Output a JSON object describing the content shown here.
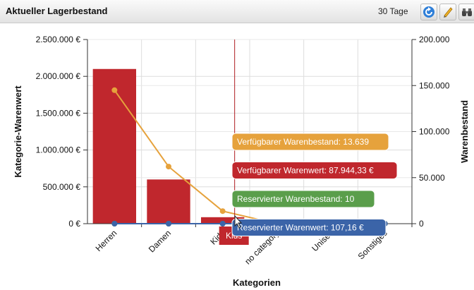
{
  "header": {
    "title": "Aktueller Lagerbestand",
    "period": "30 Tage",
    "icons": [
      "refresh-icon",
      "edit-icon",
      "binoculars-icon"
    ]
  },
  "chart_data": {
    "type": "bar",
    "categories": [
      "Herren",
      "Damen",
      "Kids",
      "no category",
      "Unisex",
      "Sonstiges"
    ],
    "xlabel": "Kategorien",
    "ylabel_left": "Kategorie-Warenwert",
    "ylabel_right": "Warenbestand",
    "left_axis": {
      "min": 0,
      "max": 2500000,
      "ticks": [
        "0 €",
        "500.000 €",
        "1.000.000 €",
        "1.500.000 €",
        "2.000.000 €",
        "2.500.000 €"
      ]
    },
    "right_axis": {
      "min": 0,
      "max": 200000,
      "ticks": [
        "0",
        "50.000",
        "100.000",
        "150.000",
        "200.000"
      ]
    },
    "series": [
      {
        "name": "Verfügbarer Warenwert",
        "kind": "bar",
        "axis": "left",
        "color": "#c0272d",
        "values": [
          2100000,
          600000,
          87944.33,
          0,
          0,
          0
        ]
      },
      {
        "name": "Verfügbarer Warenbestand",
        "kind": "line",
        "axis": "right",
        "color": "#e6a23c",
        "values": [
          145000,
          62000,
          13639,
          0,
          0,
          0
        ]
      },
      {
        "name": "Reservierter Warenbestand",
        "kind": "line",
        "axis": "right",
        "color": "#5a9e4b",
        "values": [
          0,
          0,
          10,
          0,
          0,
          0
        ]
      },
      {
        "name": "Reservierter Warenwert",
        "kind": "line",
        "axis": "left",
        "color": "#3b64a8",
        "values": [
          0,
          0,
          107.16,
          0,
          0,
          0
        ]
      }
    ],
    "hover_category": "Kids",
    "tooltip": [
      {
        "text": "Verfügbarer Warenbestand: 13.639",
        "color": "#e6a23c"
      },
      {
        "text": "Verfügbarer Warenwert: 87.944,33 €",
        "color": "#c0272d"
      },
      {
        "text": "Reservierter Warenbestand: 10",
        "color": "#5a9e4b"
      },
      {
        "text": "Reservierter Warenwert: 107,16 €",
        "color": "#3b64a8"
      }
    ],
    "grid": true
  }
}
